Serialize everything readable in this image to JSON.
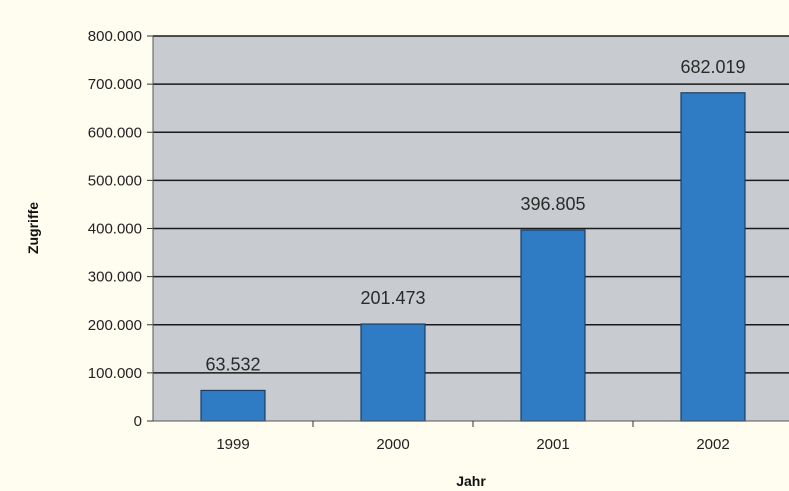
{
  "chart_data": {
    "type": "bar",
    "title": "",
    "xlabel": "Jahr",
    "ylabel": "Zugriffe",
    "categories": [
      "1999",
      "2000",
      "2001",
      "2002"
    ],
    "values": [
      63532,
      201473,
      396805,
      682019
    ],
    "value_labels": [
      "63.532",
      "201.473",
      "396.805",
      "682.019"
    ],
    "ylim": [
      0,
      800000
    ],
    "y_ticks": [
      0,
      100000,
      200000,
      300000,
      400000,
      500000,
      600000,
      700000,
      800000
    ],
    "y_tick_labels": [
      "0",
      "100.000",
      "200.000",
      "300.000",
      "400.000",
      "500.000",
      "600.000",
      "700.000",
      "800.000"
    ],
    "grid": true,
    "legend": "none",
    "colors": {
      "bar": "#2f7cc4",
      "bar_stroke": "#1b3f66",
      "plot_background": "#c8ccd0",
      "page_background": "#fffdf0",
      "grid": "#1a1a1a"
    }
  }
}
